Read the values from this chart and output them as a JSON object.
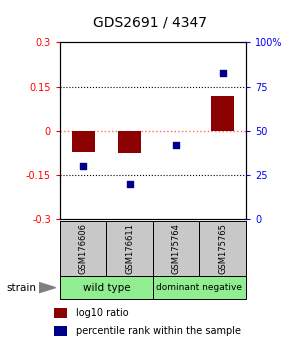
{
  "title": "GDS2691 / 4347",
  "samples": [
    "GSM176606",
    "GSM176611",
    "GSM175764",
    "GSM175765"
  ],
  "log10_ratio": [
    -0.07,
    -0.075,
    0.0,
    0.12
  ],
  "percentile_rank": [
    30,
    20,
    42,
    83
  ],
  "ylim_left": [
    -0.3,
    0.3
  ],
  "ylim_right": [
    0,
    100
  ],
  "yticks_left": [
    -0.3,
    -0.15,
    0,
    0.15,
    0.3
  ],
  "yticks_right": [
    0,
    25,
    50,
    75,
    100
  ],
  "ytick_labels_right": [
    "0",
    "25",
    "50",
    "75",
    "100%"
  ],
  "bar_color": "#8B0000",
  "scatter_color": "#00008B",
  "hline_zero_color": "#FF6666",
  "hline_dotted_color": "#000000",
  "bar_width": 0.5,
  "legend_red_label": "log10 ratio",
  "legend_blue_label": "percentile rank within the sample",
  "strain_label": "strain",
  "group_box_color": "#C8C8C8",
  "group1_label": "wild type",
  "group2_label": "dominant negative",
  "group_color": "#90EE90"
}
